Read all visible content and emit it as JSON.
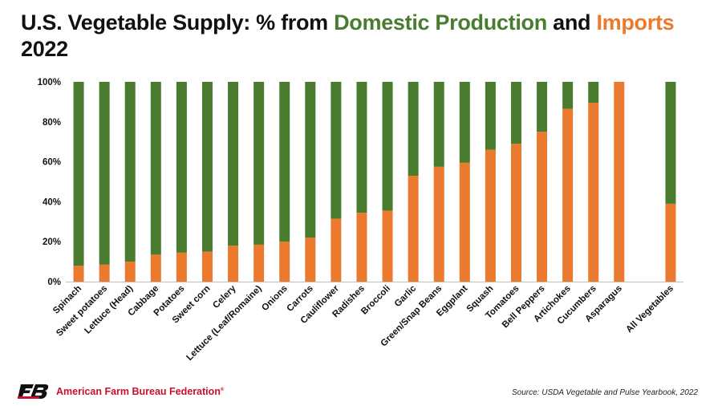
{
  "header": {
    "title_prefix": "U.S. Vegetable Supply: % from ",
    "title_domestic": "Domestic Production",
    "title_and": " and ",
    "title_imports": "Imports",
    "title_year": "2022"
  },
  "footer": {
    "org_name": "American Farm Bureau Federation",
    "org_mark": "®",
    "source": "Source: USDA Vegetable and Pulse Yearbook, 2022"
  },
  "colors": {
    "domestic": "#4a7c30",
    "imports": "#ec7a2e"
  },
  "chart_data": {
    "type": "bar",
    "stacked": true,
    "categories": [
      "Spinach",
      "Sweet potatoes",
      "Lettuce (Head)",
      "Cabbage",
      "Potatoes",
      "Sweet corn",
      "Celery",
      "Lettuce (Leaf/Romaine)",
      "Onions",
      "Carrots",
      "Cauliflower",
      "Radishes",
      "Broccoli",
      "Garlic",
      "Green/Snap Beans",
      "Eggplant",
      "Squash",
      "Tomatoes",
      "Bell Peppers",
      "Artichokes",
      "Cucumbers",
      "Asparagus",
      "",
      "All Vegetables"
    ],
    "series": [
      {
        "name": "Imports",
        "values": [
          8,
          8.5,
          10,
          13.5,
          14.5,
          15,
          18,
          18.5,
          20,
          22,
          31.5,
          34.5,
          35.5,
          53,
          57.5,
          59.5,
          66,
          69,
          75,
          86.5,
          89.5,
          100,
          null,
          39
        ]
      },
      {
        "name": "Domestic Production",
        "values": [
          92,
          91.5,
          90,
          86.5,
          85.5,
          85,
          82,
          81.5,
          80,
          78,
          68.5,
          65.5,
          64.5,
          47,
          42.5,
          40.5,
          34,
          31,
          25,
          13.5,
          10.5,
          0,
          null,
          61
        ]
      }
    ],
    "ylim": [
      0,
      100
    ],
    "yticks": [
      "0%",
      "20%",
      "40%",
      "60%",
      "80%",
      "100%"
    ],
    "grid": false,
    "legend": "none"
  }
}
